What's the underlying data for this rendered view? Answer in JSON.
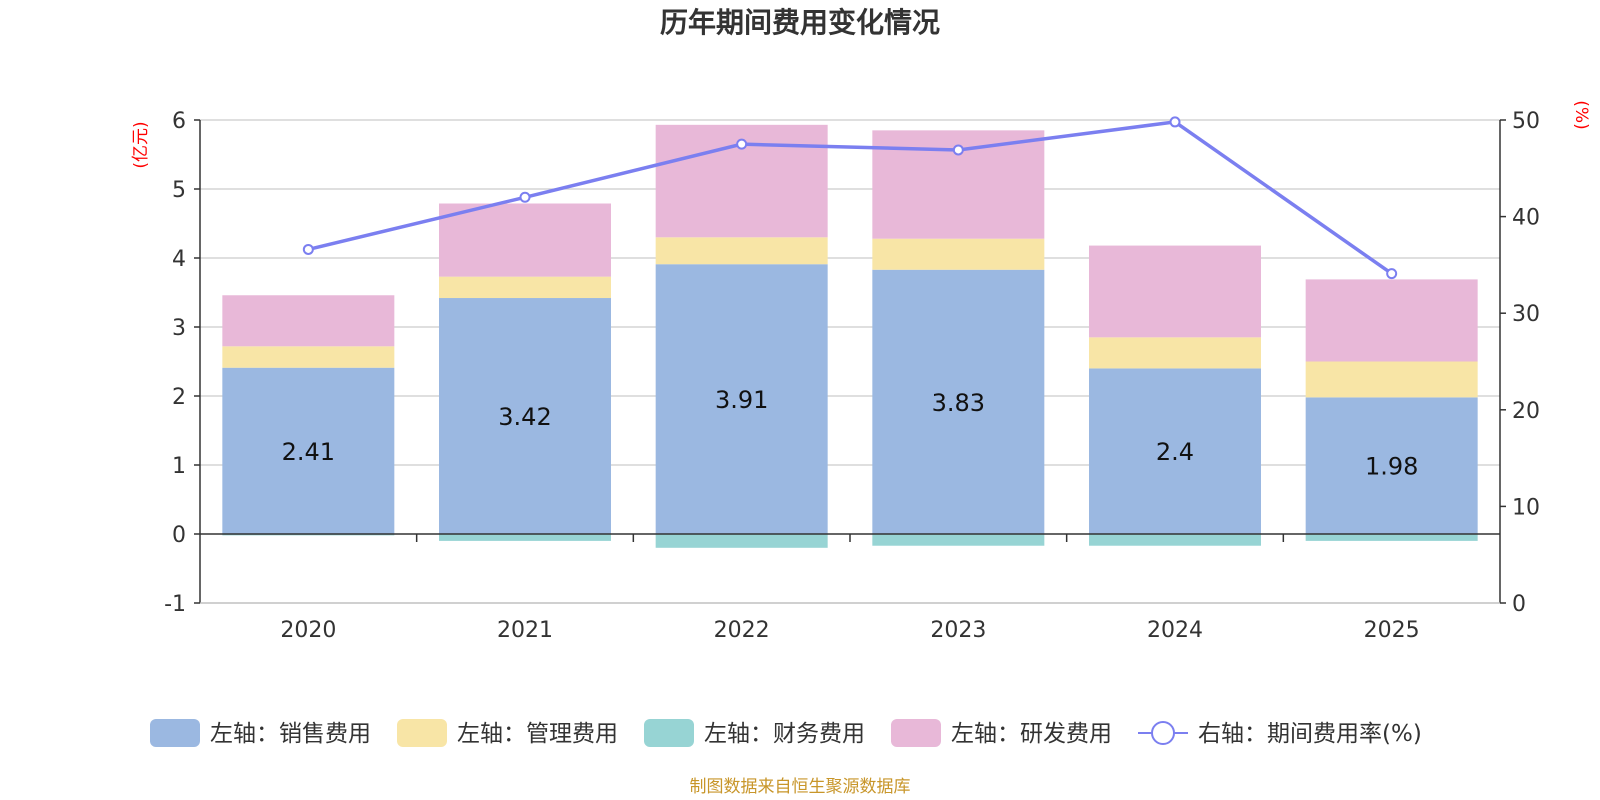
{
  "chart_data": {
    "type": "bar",
    "title": "历年期间费用变化情况",
    "categories": [
      "2020",
      "2021",
      "2022",
      "2023",
      "2024",
      "2025"
    ],
    "left_axis": {
      "unit": "(亿元)",
      "ylim": [
        -1,
        6
      ],
      "ticks": [
        "-1",
        "0",
        "1",
        "2",
        "3",
        "4",
        "5",
        "6"
      ]
    },
    "right_axis": {
      "unit": "(%)",
      "ylim": [
        0,
        50
      ],
      "ticks": [
        "0",
        "10",
        "20",
        "30",
        "40",
        "50"
      ]
    },
    "series": [
      {
        "name": "左轴：销售费用",
        "kind": "bar",
        "color": "#9bb8e1",
        "values": [
          2.41,
          3.42,
          3.91,
          3.83,
          2.4,
          1.98
        ],
        "value_labels": [
          "2.41",
          "3.42",
          "3.91",
          "3.83",
          "2.4",
          "1.98"
        ]
      },
      {
        "name": "左轴：管理费用",
        "kind": "bar",
        "color": "#f8e5a6",
        "values": [
          0.31,
          0.31,
          0.39,
          0.45,
          0.45,
          0.52
        ]
      },
      {
        "name": "左轴：财务费用",
        "kind": "bar",
        "color": "#97d4d4",
        "values": [
          -0.02,
          -0.1,
          -0.2,
          -0.17,
          -0.17,
          -0.1
        ]
      },
      {
        "name": "左轴：研发费用",
        "kind": "bar",
        "color": "#e8b8d8",
        "values": [
          0.74,
          1.06,
          1.63,
          1.57,
          1.33,
          1.19
        ]
      },
      {
        "name": "右轴：期间费用率(%)",
        "kind": "line",
        "axis": "right",
        "color": "#7b7ff0",
        "values": [
          36.6,
          42.0,
          47.5,
          46.9,
          49.8,
          34.1
        ]
      }
    ],
    "legend_position": "bottom",
    "grid": true
  },
  "source_note": "制图数据来自恒生聚源数据库"
}
